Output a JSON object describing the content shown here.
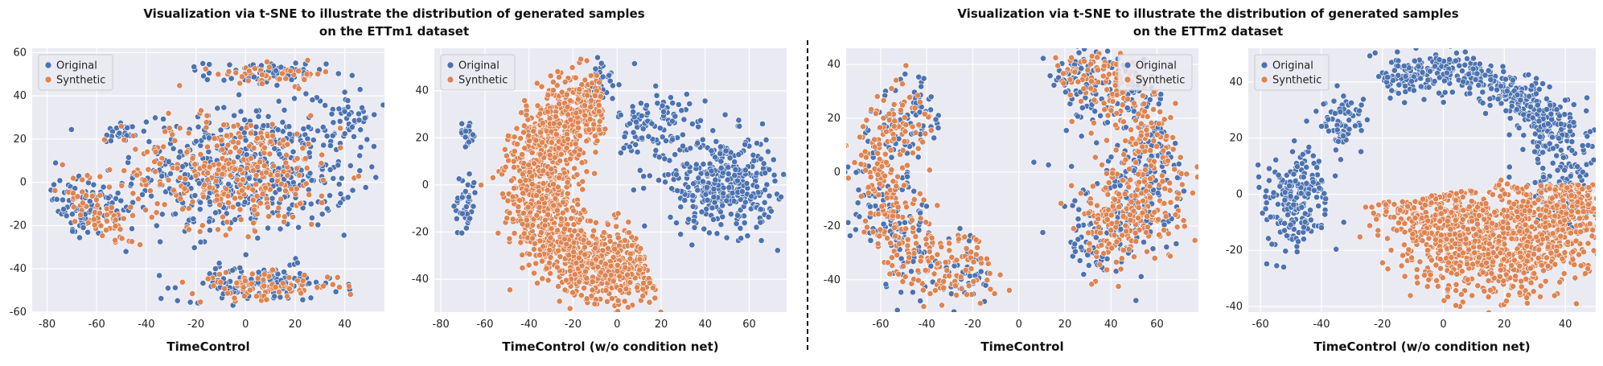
{
  "titles": {
    "left": {
      "line1": "Visualization via t-SNE to illustrate the distribution of generated samples",
      "line2": "on the ETTm1 dataset"
    },
    "right": {
      "line1": "Visualization via t-SNE to illustrate the distribution of generated samples",
      "line2": "on the ETTm2 dataset"
    }
  },
  "colors": {
    "original": "#4c72b0",
    "synthetic": "#dd8452",
    "background": "#eaeaf2",
    "grid": "#ffffff"
  },
  "chart_data": [
    {
      "type": "scatter",
      "xlabel": "TimeControl",
      "xlim": [
        -86,
        56
      ],
      "ylim": [
        -60,
        62
      ],
      "xticks": [
        -80,
        -60,
        -40,
        -20,
        0,
        20,
        40
      ],
      "yticks": [
        -60,
        -40,
        -20,
        0,
        20,
        40,
        60
      ],
      "legend": "top-left",
      "series": [
        {
          "name": "Original",
          "clusters": [
            {
              "cx": -64,
              "cy": -12,
              "sx": 9,
              "sy": 7,
              "n": 90,
              "rot": -0.7
            },
            {
              "cx": -50,
              "cy": 23,
              "sx": 5,
              "sy": 3,
              "n": 25,
              "rot": 0
            },
            {
              "cx": 0,
              "cy": 5,
              "sx": 22,
              "sy": 14,
              "n": 520,
              "rot": 0
            },
            {
              "cx": 8,
              "cy": 50,
              "sx": 12,
              "sy": 3,
              "n": 70,
              "rot": 0
            },
            {
              "cx": 6,
              "cy": -47,
              "sx": 16,
              "sy": 4,
              "n": 130,
              "rot": 0
            },
            {
              "cx": 40,
              "cy": 32,
              "sx": 7,
              "sy": 6,
              "n": 40,
              "rot": 0
            }
          ]
        },
        {
          "name": "Synthetic",
          "clusters": [
            {
              "cx": -58,
              "cy": -16,
              "sx": 9,
              "sy": 4,
              "n": 60,
              "rot": -0.75
            },
            {
              "cx": -5,
              "cy": 5,
              "sx": 22,
              "sy": 13,
              "n": 320,
              "rot": 0
            },
            {
              "cx": 12,
              "cy": 50,
              "sx": 12,
              "sy": 2.5,
              "n": 45,
              "rot": 0
            },
            {
              "cx": 8,
              "cy": -48,
              "sx": 15,
              "sy": 3,
              "n": 90,
              "rot": 0
            }
          ]
        }
      ]
    },
    {
      "type": "scatter",
      "xlabel": "TimeControl (w/o condition net)",
      "xlim": [
        -83,
        77
      ],
      "ylim": [
        -54,
        58
      ],
      "xticks": [
        -80,
        -60,
        -40,
        -20,
        0,
        20,
        40,
        60
      ],
      "yticks": [
        -40,
        -20,
        0,
        20,
        40
      ],
      "legend": "top-left",
      "series": [
        {
          "name": "Original",
          "clusters": [
            {
              "cx": -68,
              "cy": 22,
              "sx": 2,
              "sy": 2.5,
              "n": 22,
              "rot": 0
            },
            {
              "cx": -69,
              "cy": -8,
              "sx": 2.5,
              "sy": 7,
              "n": 45,
              "rot": 0
            },
            {
              "cx": 48,
              "cy": 1,
              "sx": 12,
              "sy": 10,
              "n": 380,
              "rot": 0
            },
            {
              "cx": 17,
              "cy": 24,
              "sx": 8,
              "sy": 10,
              "n": 110,
              "rot": 0
            },
            {
              "cx": -7,
              "cy": 44,
              "sx": 3,
              "sy": 6,
              "n": 30,
              "rot": 0
            }
          ]
        },
        {
          "name": "Synthetic",
          "arcs": [
            {
              "cx": 0,
              "cy": 0,
              "r": 37,
              "thick": 8,
              "a0": 1.75,
              "a1": 5.1,
              "n": 1400
            }
          ]
        }
      ]
    },
    {
      "type": "scatter",
      "xlabel": "TimeControl",
      "xlim": [
        -75,
        78
      ],
      "ylim": [
        -52,
        46
      ],
      "xticks": [
        -60,
        -40,
        -20,
        0,
        20,
        40,
        60
      ],
      "yticks": [
        -40,
        -20,
        0,
        20,
        40
      ],
      "legend": "top-right",
      "series": [
        {
          "name": "Original",
          "arcs": [
            {
              "cx": -30,
              "cy": -5,
              "r": 32,
              "thick": 7,
              "a0": 1.75,
              "a1": 5.2,
              "n": 260
            },
            {
              "cx": 28,
              "cy": 4,
              "r": 32,
              "thick": 7,
              "a0": -1.7,
              "a1": 2.0,
              "n": 300
            }
          ],
          "clusters": [
            {
              "cx": 48,
              "cy": -10,
              "sx": 14,
              "sy": 11,
              "n": 90,
              "rot": 0
            }
          ]
        },
        {
          "name": "Synthetic",
          "arcs": [
            {
              "cx": -30,
              "cy": -5,
              "r": 31,
              "thick": 7,
              "a0": 1.9,
              "a1": 5.3,
              "n": 320
            },
            {
              "cx": 28,
              "cy": 4,
              "r": 31,
              "thick": 7,
              "a0": -1.5,
              "a1": 1.9,
              "n": 330
            }
          ],
          "clusters": [
            {
              "cx": 50,
              "cy": -14,
              "sx": 13,
              "sy": 10,
              "n": 90,
              "rot": 0
            }
          ]
        }
      ]
    },
    {
      "type": "scatter",
      "xlabel": "TimeControl (w/o condition net)",
      "xlim": [
        -64,
        50
      ],
      "ylim": [
        -42,
        52
      ],
      "xticks": [
        -60,
        -40,
        -20,
        0,
        20,
        40
      ],
      "yticks": [
        -40,
        -20,
        0,
        20,
        40
      ],
      "legend": "top-left",
      "series": [
        {
          "name": "Original",
          "clusters": [
            {
              "cx": -48,
              "cy": -2,
              "sx": 5,
              "sy": 9,
              "n": 200,
              "rot": 0
            },
            {
              "cx": -33,
              "cy": 27,
              "sx": 4,
              "sy": 5,
              "n": 75,
              "rot": 0
            },
            {
              "cx": 38,
              "cy": 8,
              "sx": 6,
              "sy": 12,
              "n": 170,
              "rot": 0
            }
          ],
          "arcs": [
            {
              "cx": -2,
              "cy": 0,
              "r": 44,
              "thick": 4,
              "a0": 0.45,
              "a1": 2.0,
              "n": 420
            }
          ]
        },
        {
          "name": "Synthetic",
          "arcs": [
            {
              "cx": 18,
              "cy": 3,
              "r": 26,
              "thick": 9,
              "a0": 3.3,
              "a1": 6.3,
              "n": 1200
            }
          ]
        }
      ]
    }
  ]
}
